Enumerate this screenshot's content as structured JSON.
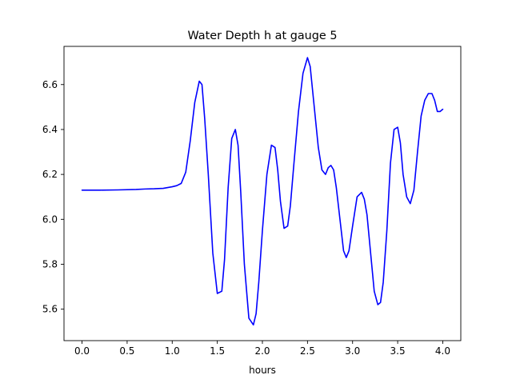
{
  "chart_data": {
    "type": "line",
    "title": "Water Depth h at gauge 5",
    "xlabel": "hours",
    "ylabel": "",
    "xlim": [
      -0.2,
      4.2
    ],
    "ylim": [
      5.46,
      6.77
    ],
    "x_ticks": [
      "0.0",
      "0.5",
      "1.0",
      "1.5",
      "2.0",
      "2.5",
      "3.0",
      "3.5",
      "4.0"
    ],
    "y_ticks": [
      "5.6",
      "5.8",
      "6.0",
      "6.2",
      "6.4",
      "6.6"
    ],
    "grid": false,
    "legend": "none",
    "series": [
      {
        "color": "#0000ff",
        "x": [
          0.0,
          0.2,
          0.4,
          0.6,
          0.7,
          0.8,
          0.9,
          1.0,
          1.05,
          1.1,
          1.15,
          1.2,
          1.25,
          1.3,
          1.33,
          1.36,
          1.4,
          1.45,
          1.5,
          1.55,
          1.58,
          1.62,
          1.66,
          1.7,
          1.73,
          1.76,
          1.8,
          1.85,
          1.9,
          1.93,
          1.96,
          2.0,
          2.05,
          2.1,
          2.14,
          2.17,
          2.2,
          2.24,
          2.28,
          2.31,
          2.35,
          2.4,
          2.45,
          2.5,
          2.53,
          2.57,
          2.62,
          2.66,
          2.7,
          2.73,
          2.76,
          2.79,
          2.82,
          2.86,
          2.9,
          2.93,
          2.96,
          3.0,
          3.05,
          3.1,
          3.13,
          3.16,
          3.2,
          3.24,
          3.28,
          3.31,
          3.34,
          3.38,
          3.42,
          3.46,
          3.5,
          3.53,
          3.56,
          3.6,
          3.64,
          3.68,
          3.72,
          3.76,
          3.8,
          3.84,
          3.88,
          3.91,
          3.94,
          3.97,
          4.0
        ],
        "y": [
          6.13,
          6.13,
          6.131,
          6.133,
          6.135,
          6.136,
          6.138,
          6.145,
          6.15,
          6.16,
          6.21,
          6.35,
          6.52,
          6.615,
          6.6,
          6.45,
          6.2,
          5.85,
          5.67,
          5.68,
          5.82,
          6.14,
          6.36,
          6.4,
          6.33,
          6.12,
          5.8,
          5.56,
          5.53,
          5.58,
          5.72,
          5.95,
          6.2,
          6.33,
          6.32,
          6.22,
          6.08,
          5.96,
          5.97,
          6.06,
          6.25,
          6.48,
          6.65,
          6.72,
          6.68,
          6.52,
          6.32,
          6.22,
          6.2,
          6.23,
          6.24,
          6.22,
          6.14,
          6.0,
          5.86,
          5.83,
          5.86,
          5.97,
          6.1,
          6.12,
          6.09,
          6.02,
          5.85,
          5.68,
          5.62,
          5.63,
          5.72,
          5.95,
          6.25,
          6.4,
          6.41,
          6.34,
          6.2,
          6.1,
          6.07,
          6.13,
          6.3,
          6.46,
          6.53,
          6.56,
          6.56,
          6.53,
          6.48,
          6.48,
          6.49
        ]
      }
    ]
  }
}
